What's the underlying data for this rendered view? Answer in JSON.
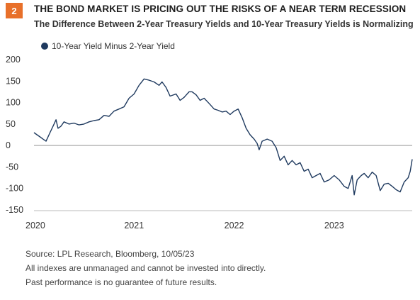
{
  "badge": "2",
  "title": "THE BOND MARKET IS PRICING OUT THE RISKS OF A NEAR TERM RECESSION",
  "subtitle": "The Difference Between 2-Year Treasury Yields and 10-Year Treasury Yields is Normalizing",
  "colors": {
    "badge": "#e8702a",
    "series": "#1f3a5f",
    "axis": "#999999"
  },
  "chart_data": {
    "type": "line",
    "title": "",
    "xlabel": "",
    "ylabel": "",
    "ylim": [
      -150,
      200
    ],
    "yticks": [
      200,
      150,
      100,
      50,
      0,
      -50,
      -100,
      -150
    ],
    "xlim": [
      2020.0,
      2023.78
    ],
    "xticks": [
      {
        "label": "2020",
        "x": 2020.0
      },
      {
        "label": "2021",
        "x": 2021.0
      },
      {
        "label": "2022",
        "x": 2022.0
      },
      {
        "label": "2023",
        "x": 2023.0
      }
    ],
    "grid": false,
    "zero_line": true,
    "legend": "top-left",
    "series": [
      {
        "name": "10-Year Yield Minus 2-Year Yield",
        "x": [
          2020.0,
          2020.03,
          2020.06,
          2020.09,
          2020.12,
          2020.16,
          2020.2,
          2020.22,
          2020.24,
          2020.27,
          2020.3,
          2020.35,
          2020.4,
          2020.45,
          2020.5,
          2020.55,
          2020.6,
          2020.65,
          2020.7,
          2020.75,
          2020.8,
          2020.85,
          2020.9,
          2020.95,
          2021.0,
          2021.05,
          2021.1,
          2021.15,
          2021.2,
          2021.25,
          2021.28,
          2021.32,
          2021.36,
          2021.42,
          2021.46,
          2021.5,
          2021.55,
          2021.58,
          2021.62,
          2021.66,
          2021.7,
          2021.75,
          2021.8,
          2021.84,
          2021.88,
          2021.92,
          2021.96,
          2022.0,
          2022.04,
          2022.08,
          2022.12,
          2022.16,
          2022.2,
          2022.23,
          2022.25,
          2022.28,
          2022.33,
          2022.38,
          2022.42,
          2022.46,
          2022.5,
          2022.54,
          2022.58,
          2022.62,
          2022.66,
          2022.7,
          2022.74,
          2022.78,
          2022.82,
          2022.86,
          2022.9,
          2022.95,
          2023.0,
          2023.05,
          2023.1,
          2023.14,
          2023.18,
          2023.2,
          2023.23,
          2023.27,
          2023.3,
          2023.34,
          2023.38,
          2023.42,
          2023.46,
          2023.5,
          2023.54,
          2023.58,
          2023.62,
          2023.66,
          2023.7,
          2023.74,
          2023.76,
          2023.78
        ],
        "y": [
          30,
          25,
          20,
          15,
          10,
          30,
          50,
          60,
          40,
          45,
          55,
          50,
          52,
          48,
          50,
          55,
          58,
          60,
          70,
          68,
          80,
          85,
          90,
          110,
          120,
          140,
          155,
          152,
          148,
          140,
          148,
          135,
          115,
          120,
          105,
          112,
          125,
          125,
          118,
          105,
          110,
          98,
          85,
          82,
          78,
          80,
          72,
          80,
          85,
          65,
          40,
          25,
          15,
          5,
          -10,
          10,
          15,
          10,
          -5,
          -35,
          -25,
          -45,
          -35,
          -45,
          -40,
          -60,
          -55,
          -75,
          -70,
          -65,
          -85,
          -80,
          -70,
          -80,
          -95,
          -100,
          -70,
          -115,
          -80,
          -70,
          -65,
          -75,
          -62,
          -70,
          -105,
          -90,
          -88,
          -95,
          -103,
          -108,
          -85,
          -75,
          -60,
          -32
        ]
      }
    ]
  },
  "footer": {
    "source": "Source: LPL Research, Bloomberg,  10/05/23",
    "note1": "All indexes are unmanaged and cannot be invested into directly.",
    "note2": "Past performance is no guarantee of future results."
  }
}
